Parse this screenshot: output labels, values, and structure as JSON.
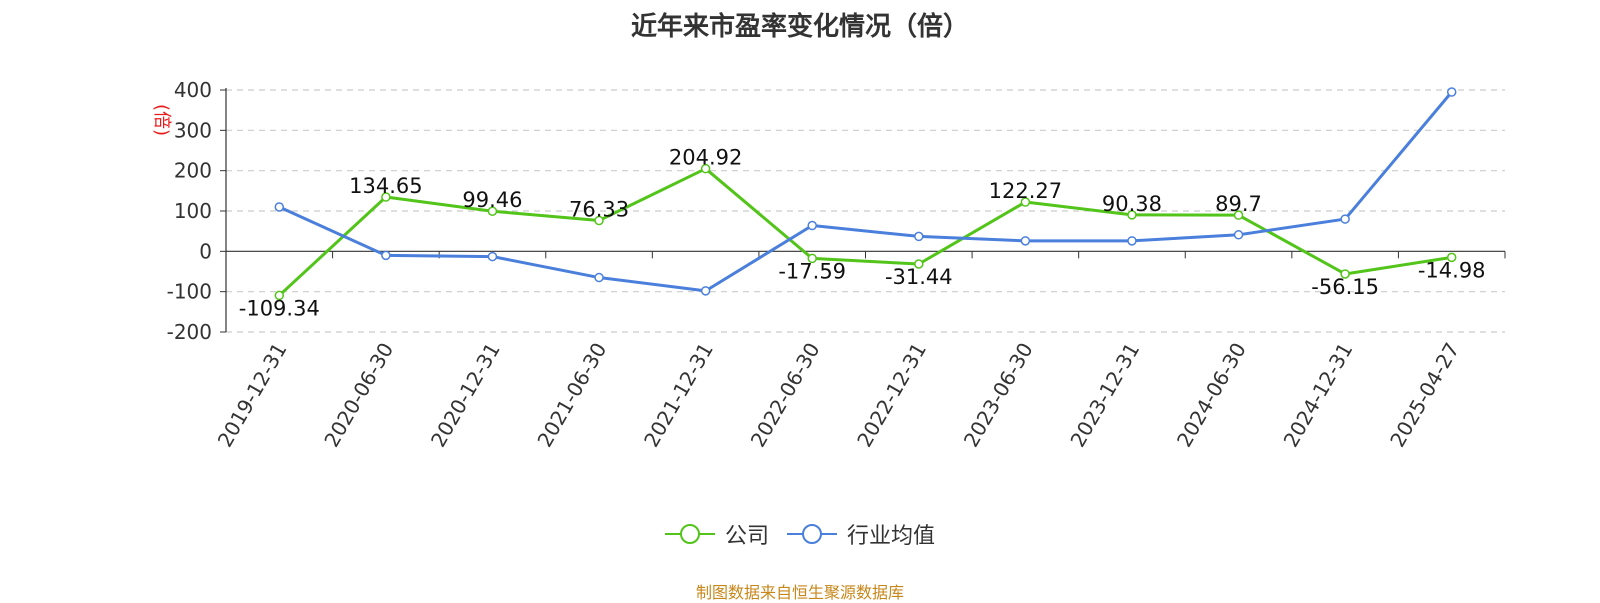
{
  "chart_data": {
    "type": "line",
    "title": "近年来市盈率变化情况（倍）",
    "ylabel": "(倍)",
    "categories": [
      "2019-12-31",
      "2020-06-30",
      "2020-12-31",
      "2021-06-30",
      "2021-12-31",
      "2022-06-30",
      "2022-12-31",
      "2023-06-30",
      "2023-12-31",
      "2024-06-30",
      "2024-12-31",
      "2025-04-27"
    ],
    "ylim": [
      -200,
      400
    ],
    "yticks": [
      -200,
      -100,
      0,
      100,
      200,
      300,
      400
    ],
    "grid": true,
    "legend_position": "bottom-center",
    "series": [
      {
        "name": "公司",
        "color": "#52c41a",
        "values": [
          -109.34,
          134.65,
          99.46,
          76.33,
          204.92,
          -17.59,
          -31.44,
          122.27,
          90.38,
          89.7,
          -56.15,
          -14.98
        ],
        "labels": [
          "-109.34",
          "134.65",
          "99.46",
          "76.33",
          "204.92",
          "-17.59",
          "-31.44",
          "122.27",
          "90.38",
          "89.7",
          "-56.15",
          "-14.98"
        ]
      },
      {
        "name": "行业均值",
        "color": "#4a7fdc",
        "values": [
          110,
          -10,
          -13,
          -65,
          -98,
          64,
          37,
          26,
          26,
          41,
          80,
          395
        ]
      }
    ]
  },
  "footer": "制图数据来自恒生聚源数据库"
}
